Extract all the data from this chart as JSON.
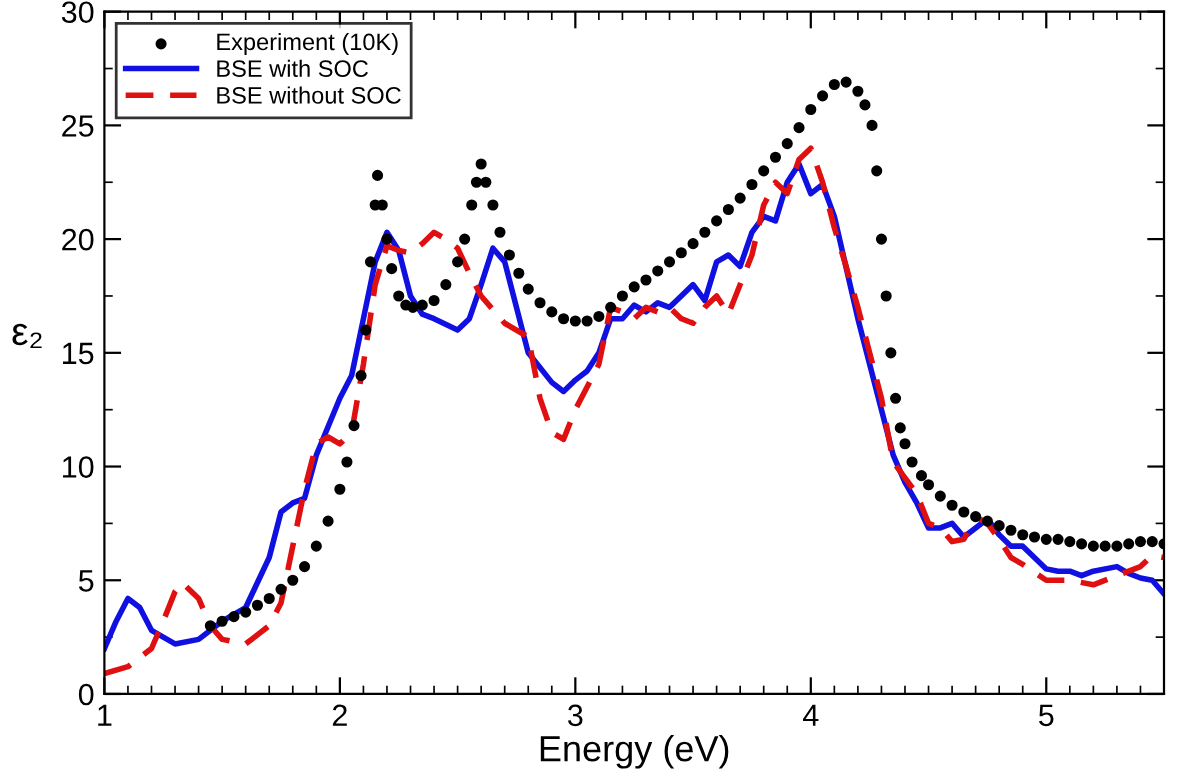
{
  "chart_data": {
    "type": "line",
    "xlabel": "Energy (eV)",
    "ylabel": "ε₂",
    "xlim": [
      1,
      5.5
    ],
    "ylim": [
      0,
      30
    ],
    "xticks": [
      1,
      2,
      3,
      4,
      5
    ],
    "yticks": [
      0,
      5,
      10,
      15,
      20,
      25,
      30
    ],
    "grid": false,
    "legend": "top left",
    "series": [
      {
        "name": "Experiment (10K)",
        "type": "scatter",
        "marker": "circle",
        "color": "#000000",
        "x": [
          1.45,
          1.5,
          1.55,
          1.6,
          1.65,
          1.7,
          1.75,
          1.8,
          1.85,
          1.9,
          1.95,
          2.0,
          2.03,
          2.06,
          2.09,
          2.11,
          2.13,
          2.15,
          2.16,
          2.18,
          2.2,
          2.22,
          2.25,
          2.28,
          2.31,
          2.35,
          2.4,
          2.45,
          2.5,
          2.53,
          2.56,
          2.58,
          2.6,
          2.62,
          2.65,
          2.68,
          2.72,
          2.76,
          2.8,
          2.85,
          2.9,
          2.95,
          3.0,
          3.05,
          3.1,
          3.15,
          3.2,
          3.25,
          3.3,
          3.35,
          3.4,
          3.45,
          3.5,
          3.55,
          3.6,
          3.65,
          3.7,
          3.75,
          3.8,
          3.85,
          3.9,
          3.95,
          4.0,
          4.05,
          4.1,
          4.15,
          4.2,
          4.23,
          4.26,
          4.28,
          4.3,
          4.32,
          4.34,
          4.36,
          4.38,
          4.4,
          4.43,
          4.47,
          4.5,
          4.55,
          4.6,
          4.65,
          4.7,
          4.75,
          4.8,
          4.85,
          4.9,
          4.95,
          5.0,
          5.05,
          5.1,
          5.15,
          5.2,
          5.25,
          5.3,
          5.35,
          5.4,
          5.45,
          5.5
        ],
        "values": [
          3.0,
          3.2,
          3.4,
          3.6,
          3.9,
          4.2,
          4.6,
          5.0,
          5.6,
          6.5,
          7.6,
          9.0,
          10.2,
          11.8,
          14.0,
          16.0,
          19.0,
          21.5,
          22.8,
          21.5,
          20.0,
          18.7,
          17.5,
          17.1,
          17.0,
          17.1,
          17.3,
          18.0,
          19.0,
          20.0,
          21.5,
          22.5,
          23.3,
          22.5,
          21.5,
          20.3,
          19.3,
          18.5,
          17.8,
          17.2,
          16.8,
          16.5,
          16.4,
          16.4,
          16.6,
          17.0,
          17.5,
          17.9,
          18.2,
          18.6,
          19.0,
          19.4,
          19.8,
          20.3,
          20.8,
          21.3,
          21.8,
          22.4,
          23.0,
          23.6,
          24.2,
          24.9,
          25.7,
          26.3,
          26.8,
          26.9,
          26.5,
          25.9,
          25.0,
          23.0,
          20.0,
          17.5,
          15.0,
          13.0,
          11.7,
          11.0,
          10.2,
          9.6,
          9.2,
          8.7,
          8.3,
          8.0,
          7.8,
          7.6,
          7.4,
          7.2,
          7.0,
          6.9,
          6.8,
          6.8,
          6.7,
          6.6,
          6.5,
          6.5,
          6.5,
          6.6,
          6.7,
          6.7,
          6.6
        ]
      },
      {
        "name": "BSE with SOC",
        "line_style": "solid",
        "color": "#1010e0",
        "x": [
          1.0,
          1.05,
          1.1,
          1.15,
          1.2,
          1.3,
          1.4,
          1.5,
          1.6,
          1.7,
          1.75,
          1.8,
          1.85,
          1.9,
          2.0,
          2.05,
          2.1,
          2.15,
          2.2,
          2.25,
          2.3,
          2.35,
          2.4,
          2.5,
          2.55,
          2.6,
          2.65,
          2.7,
          2.8,
          2.9,
          2.95,
          3.0,
          3.05,
          3.1,
          3.15,
          3.2,
          3.25,
          3.3,
          3.35,
          3.4,
          3.45,
          3.5,
          3.55,
          3.6,
          3.65,
          3.7,
          3.75,
          3.8,
          3.85,
          3.9,
          3.95,
          4.0,
          4.05,
          4.1,
          4.2,
          4.25,
          4.3,
          4.35,
          4.4,
          4.45,
          4.5,
          4.55,
          4.6,
          4.65,
          4.7,
          4.75,
          4.8,
          4.85,
          4.9,
          5.0,
          5.05,
          5.1,
          5.15,
          5.2,
          5.3,
          5.35,
          5.4,
          5.45,
          5.5
        ],
        "values": [
          2.0,
          3.2,
          4.2,
          3.8,
          2.8,
          2.2,
          2.4,
          3.2,
          3.8,
          6.0,
          8.0,
          8.4,
          8.6,
          10.5,
          13.0,
          14.0,
          16.5,
          19.0,
          20.3,
          19.5,
          17.5,
          16.7,
          16.5,
          16.0,
          16.5,
          18.0,
          19.6,
          19.0,
          15.0,
          13.7,
          13.3,
          13.8,
          14.2,
          15.0,
          16.5,
          16.5,
          17.1,
          16.8,
          17.2,
          17.0,
          17.5,
          18.0,
          17.3,
          19.0,
          19.3,
          18.8,
          20.3,
          21.0,
          20.8,
          22.5,
          23.3,
          22.0,
          22.4,
          21.0,
          16.5,
          14.5,
          12.5,
          10.5,
          9.3,
          8.4,
          7.3,
          7.3,
          7.5,
          6.9,
          7.3,
          7.7,
          7.0,
          6.5,
          6.5,
          5.5,
          5.4,
          5.4,
          5.2,
          5.4,
          5.6,
          5.3,
          5.1,
          5.0,
          4.4
        ]
      },
      {
        "name": "BSE without SOC",
        "line_style": "dashed",
        "color": "#e01010",
        "x": [
          1.0,
          1.1,
          1.2,
          1.25,
          1.3,
          1.33,
          1.4,
          1.45,
          1.5,
          1.6,
          1.7,
          1.75,
          1.8,
          1.85,
          1.9,
          1.95,
          2.0,
          2.05,
          2.1,
          2.15,
          2.2,
          2.25,
          2.3,
          2.35,
          2.4,
          2.45,
          2.5,
          2.55,
          2.6,
          2.7,
          2.8,
          2.85,
          2.9,
          2.95,
          3.0,
          3.05,
          3.1,
          3.15,
          3.2,
          3.25,
          3.3,
          3.35,
          3.4,
          3.45,
          3.5,
          3.55,
          3.6,
          3.65,
          3.7,
          3.75,
          3.8,
          3.85,
          3.9,
          3.95,
          4.0,
          4.05,
          4.1,
          4.15,
          4.2,
          4.25,
          4.3,
          4.35,
          4.4,
          4.45,
          4.5,
          4.55,
          4.6,
          4.65,
          4.7,
          4.75,
          4.8,
          4.85,
          4.9,
          5.0,
          5.1,
          5.2,
          5.3,
          5.4,
          5.45,
          5.5
        ],
        "values": [
          0.9,
          1.2,
          2.0,
          3.2,
          4.5,
          4.9,
          4.2,
          3.0,
          2.4,
          2.2,
          3.0,
          4.0,
          6.5,
          9.0,
          11.0,
          11.3,
          11.0,
          11.5,
          14.5,
          18.0,
          19.7,
          19.5,
          19.4,
          19.8,
          20.3,
          20.0,
          19.6,
          18.5,
          17.5,
          16.3,
          15.7,
          13.0,
          11.5,
          11.2,
          12.5,
          13.5,
          14.5,
          17.0,
          16.8,
          16.5,
          17.0,
          16.8,
          17.0,
          16.5,
          16.3,
          17.0,
          17.5,
          16.7,
          18.0,
          19.3,
          21.5,
          22.5,
          22.0,
          23.5,
          24.0,
          22.5,
          20.5,
          18.8,
          17.0,
          15.0,
          13.0,
          10.2,
          9.5,
          8.8,
          7.5,
          7.3,
          6.7,
          6.8,
          7.8,
          7.5,
          6.8,
          6.0,
          5.7,
          5.0,
          5.0,
          4.8,
          5.2,
          5.6,
          6.1,
          6.0
        ]
      }
    ]
  }
}
